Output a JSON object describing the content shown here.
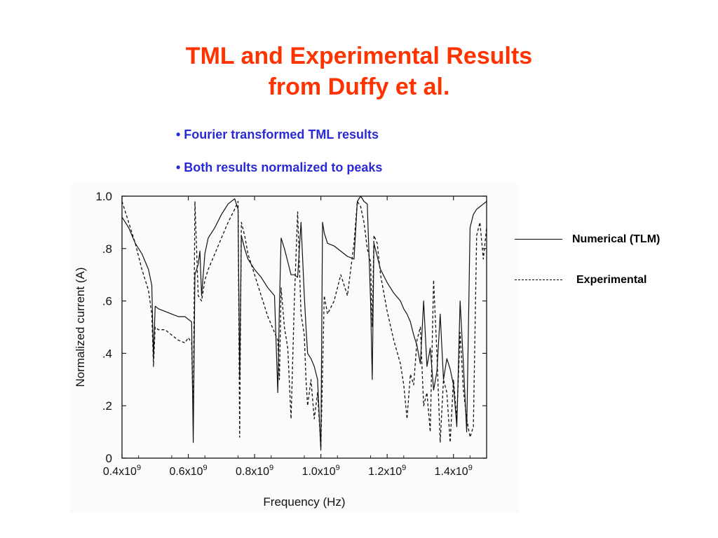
{
  "slide": {
    "title_line1": "TML and Experimental Results",
    "title_line2": "from Duffy et al.",
    "bullets": [
      "• Fourier transformed TML results",
      "• Both results normalized to peaks"
    ],
    "title_color": "#ff3300",
    "bullet_color": "#2a2ad4"
  },
  "legend": {
    "numerical": "Numerical (TLM)",
    "experimental": "Experimental"
  },
  "chart_data": {
    "type": "line",
    "xlabel": "Frequency (Hz)",
    "ylabel": "Normalized current (A)",
    "xlim": [
      0.4,
      1.5
    ],
    "ylim": [
      0,
      1.0
    ],
    "x_unit_exponent": 9,
    "x_ticks": [
      {
        "v": 0.4,
        "base": "0.4x10",
        "exp": "9"
      },
      {
        "v": 0.6,
        "base": "0.6x10",
        "exp": "9"
      },
      {
        "v": 0.8,
        "base": "0.8x10",
        "exp": "9"
      },
      {
        "v": 1.0,
        "base": "1.0x10",
        "exp": "9"
      },
      {
        "v": 1.2,
        "base": "1.2x10",
        "exp": "9"
      },
      {
        "v": 1.4,
        "base": "1.4x10",
        "exp": "9"
      }
    ],
    "y_ticks": [
      {
        "v": 0,
        "label": "0"
      },
      {
        "v": 0.2,
        "label": ".2"
      },
      {
        "v": 0.4,
        "label": ".4"
      },
      {
        "v": 0.6,
        "label": ".6"
      },
      {
        "v": 0.8,
        "label": ".8"
      },
      {
        "v": 1.0,
        "label": "1.0"
      }
    ],
    "grid": false,
    "series": [
      {
        "name": "Numerical (TLM)",
        "style": "solid",
        "x": [
          0.4,
          0.42,
          0.44,
          0.46,
          0.47,
          0.48,
          0.49,
          0.495,
          0.5,
          0.51,
          0.53,
          0.55,
          0.57,
          0.59,
          0.6,
          0.61,
          0.615,
          0.62,
          0.63,
          0.635,
          0.64,
          0.65,
          0.66,
          0.68,
          0.7,
          0.72,
          0.74,
          0.75,
          0.755,
          0.76,
          0.77,
          0.78,
          0.8,
          0.82,
          0.84,
          0.86,
          0.87,
          0.875,
          0.88,
          0.89,
          0.9,
          0.91,
          0.92,
          0.93,
          0.94,
          0.95,
          0.955,
          0.96,
          0.97,
          0.98,
          0.99,
          1.0,
          1.005,
          1.01,
          1.02,
          1.04,
          1.06,
          1.08,
          1.1,
          1.11,
          1.12,
          1.13,
          1.14,
          1.15,
          1.155,
          1.16,
          1.17,
          1.18,
          1.2,
          1.22,
          1.24,
          1.25,
          1.26,
          1.27,
          1.28,
          1.29,
          1.3,
          1.31,
          1.32,
          1.33,
          1.34,
          1.35,
          1.36,
          1.37,
          1.38,
          1.39,
          1.4,
          1.41,
          1.42,
          1.43,
          1.44,
          1.45,
          1.46,
          1.47,
          1.48,
          1.49,
          1.5
        ],
        "y": [
          0.92,
          0.88,
          0.82,
          0.78,
          0.75,
          0.72,
          0.66,
          0.38,
          0.58,
          0.57,
          0.56,
          0.55,
          0.54,
          0.54,
          0.53,
          0.52,
          0.06,
          0.7,
          0.74,
          0.79,
          0.62,
          0.78,
          0.84,
          0.88,
          0.93,
          0.97,
          0.99,
          0.95,
          0.3,
          0.85,
          0.8,
          0.76,
          0.72,
          0.69,
          0.65,
          0.62,
          0.25,
          0.58,
          0.84,
          0.8,
          0.75,
          0.7,
          0.7,
          0.69,
          0.9,
          0.62,
          0.5,
          0.4,
          0.38,
          0.35,
          0.3,
          0.03,
          0.9,
          0.86,
          0.82,
          0.81,
          0.79,
          0.77,
          0.76,
          0.98,
          1.0,
          0.98,
          0.97,
          0.6,
          0.3,
          0.82,
          0.77,
          0.72,
          0.67,
          0.63,
          0.6,
          0.57,
          0.55,
          0.52,
          0.47,
          0.43,
          0.36,
          0.6,
          0.35,
          0.42,
          0.26,
          0.33,
          0.55,
          0.3,
          0.38,
          0.34,
          0.28,
          0.12,
          0.6,
          0.36,
          0.1,
          0.88,
          0.93,
          0.95,
          0.96,
          0.97,
          0.98
        ]
      },
      {
        "name": "Experimental",
        "style": "dashed",
        "x": [
          0.4,
          0.42,
          0.44,
          0.46,
          0.47,
          0.48,
          0.49,
          0.495,
          0.5,
          0.51,
          0.53,
          0.55,
          0.57,
          0.59,
          0.6,
          0.61,
          0.615,
          0.62,
          0.63,
          0.64,
          0.65,
          0.66,
          0.68,
          0.7,
          0.72,
          0.74,
          0.75,
          0.755,
          0.76,
          0.77,
          0.78,
          0.8,
          0.82,
          0.84,
          0.86,
          0.87,
          0.875,
          0.88,
          0.89,
          0.9,
          0.91,
          0.92,
          0.93,
          0.94,
          0.95,
          0.955,
          0.96,
          0.97,
          0.98,
          0.99,
          1.0,
          1.01,
          1.02,
          1.04,
          1.06,
          1.08,
          1.1,
          1.11,
          1.12,
          1.13,
          1.14,
          1.15,
          1.155,
          1.16,
          1.17,
          1.18,
          1.2,
          1.22,
          1.24,
          1.25,
          1.26,
          1.27,
          1.28,
          1.29,
          1.3,
          1.31,
          1.32,
          1.33,
          1.34,
          1.35,
          1.36,
          1.37,
          1.38,
          1.39,
          1.4,
          1.41,
          1.42,
          1.43,
          1.44,
          1.45,
          1.46,
          1.47,
          1.48,
          1.49,
          1.5
        ],
        "y": [
          0.98,
          0.9,
          0.82,
          0.72,
          0.68,
          0.64,
          0.55,
          0.35,
          0.5,
          0.49,
          0.49,
          0.47,
          0.45,
          0.44,
          0.46,
          0.44,
          0.15,
          0.98,
          0.62,
          0.6,
          0.68,
          0.72,
          0.78,
          0.84,
          0.9,
          0.95,
          0.98,
          0.08,
          0.9,
          0.85,
          0.78,
          0.7,
          0.62,
          0.54,
          0.48,
          0.45,
          0.3,
          0.65,
          0.5,
          0.42,
          0.15,
          0.6,
          0.94,
          0.55,
          0.47,
          0.3,
          0.2,
          0.3,
          0.15,
          0.25,
          0.04,
          0.62,
          0.55,
          0.6,
          0.7,
          0.62,
          0.82,
          0.98,
          0.96,
          0.9,
          0.8,
          0.75,
          0.5,
          0.85,
          0.82,
          0.7,
          0.56,
          0.45,
          0.36,
          0.28,
          0.15,
          0.32,
          0.28,
          0.45,
          0.5,
          0.2,
          0.25,
          0.1,
          0.68,
          0.4,
          0.06,
          0.3,
          0.25,
          0.06,
          0.3,
          0.15,
          0.48,
          0.26,
          0.15,
          0.08,
          0.12,
          0.85,
          0.9,
          0.76,
          0.88
        ]
      }
    ]
  }
}
